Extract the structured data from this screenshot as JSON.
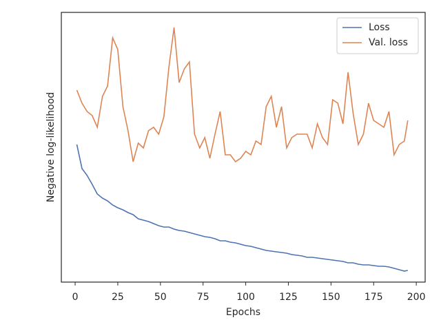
{
  "chart_data": {
    "type": "line",
    "x_label": "Epochs",
    "y_label": "Negative log-likelihood",
    "x": [
      1,
      4,
      7,
      10,
      13,
      16,
      19,
      22,
      25,
      28,
      31,
      34,
      37,
      40,
      43,
      46,
      49,
      52,
      55,
      58,
      61,
      64,
      67,
      70,
      73,
      76,
      79,
      82,
      85,
      88,
      91,
      94,
      97,
      100,
      103,
      106,
      109,
      112,
      115,
      118,
      121,
      124,
      127,
      130,
      133,
      136,
      139,
      142,
      145,
      148,
      151,
      154,
      157,
      160,
      163,
      166,
      169,
      172,
      175,
      178,
      181,
      184,
      187,
      190,
      193,
      195
    ],
    "series": [
      {
        "name": "Loss",
        "color": "#4c72b0",
        "values": [
          200,
          165,
          155,
          142,
          128,
          122,
          118,
          112,
          108,
          105,
          101,
          98,
          92,
          90,
          88,
          85,
          82,
          80,
          80,
          77,
          75,
          74,
          72,
          70,
          68,
          66,
          65,
          63,
          60,
          60,
          58,
          57,
          55,
          53,
          52,
          50,
          48,
          46,
          45,
          44,
          43,
          42,
          40,
          39,
          38,
          36,
          36,
          35,
          34,
          33,
          32,
          31,
          30,
          28,
          28,
          26,
          25,
          25,
          24,
          23,
          23,
          22,
          20,
          18,
          16,
          17
        ]
      },
      {
        "name": "Val. loss",
        "color": "#dd8452",
        "values": [
          279,
          260,
          248,
          242,
          225,
          270,
          285,
          355,
          338,
          255,
          220,
          175,
          202,
          195,
          220,
          225,
          215,
          240,
          313,
          370,
          290,
          310,
          320,
          215,
          195,
          210,
          180,
          215,
          248,
          185,
          185,
          175,
          180,
          190,
          185,
          205,
          200,
          255,
          270,
          225,
          255,
          195,
          210,
          215,
          215,
          215,
          195,
          230,
          210,
          200,
          265,
          260,
          230,
          305,
          245,
          200,
          215,
          260,
          235,
          230,
          225,
          248,
          185,
          200,
          205,
          235
        ]
      }
    ],
    "xlim": [
      -8.1,
      205.2
    ],
    "xticks": [
      0,
      25,
      50,
      75,
      100,
      125,
      150,
      175,
      200
    ],
    "ylim": [
      0,
      392
    ],
    "legend": "upper right"
  }
}
